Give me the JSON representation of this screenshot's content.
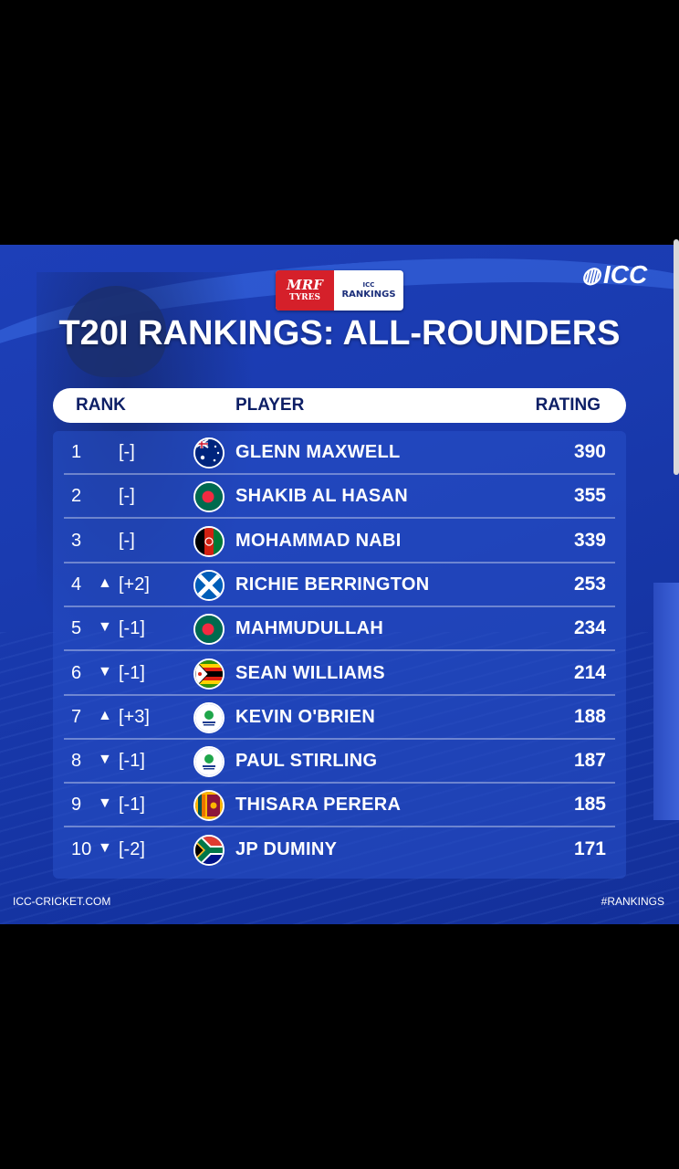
{
  "sponsor": {
    "mrf_line1": "MRF",
    "mrf_line2": "TYRES",
    "icc_small": "ICC",
    "rankings_label": "RANKINGS"
  },
  "brand": {
    "icc": "ICC"
  },
  "title": "T20I RANKINGS: ALL-ROUNDERS",
  "columns": {
    "rank": "RANK",
    "player": "PLAYER",
    "rating": "RATING"
  },
  "rows": [
    {
      "rank": "1",
      "arrow": "",
      "move": "[-]",
      "player": "GLENN MAXWELL",
      "rating": "390",
      "flag": "australia-flag"
    },
    {
      "rank": "2",
      "arrow": "",
      "move": "[-]",
      "player": "SHAKIB AL HASAN",
      "rating": "355",
      "flag": "bangladesh-flag"
    },
    {
      "rank": "3",
      "arrow": "",
      "move": "[-]",
      "player": "MOHAMMAD NABI",
      "rating": "339",
      "flag": "afghanistan-flag"
    },
    {
      "rank": "4",
      "arrow": "▲",
      "move": "[+2]",
      "player": "RICHIE BERRINGTON",
      "rating": "253",
      "flag": "scotland-flag"
    },
    {
      "rank": "5",
      "arrow": "▼",
      "move": "[-1]",
      "player": "MAHMUDULLAH",
      "rating": "234",
      "flag": "bangladesh-flag"
    },
    {
      "rank": "6",
      "arrow": "▼",
      "move": "[-1]",
      "player": "SEAN WILLIAMS",
      "rating": "214",
      "flag": "zimbabwe-flag"
    },
    {
      "rank": "7",
      "arrow": "▲",
      "move": "[+3]",
      "player": "KEVIN O'BRIEN",
      "rating": "188",
      "flag": "cricket-ireland-logo"
    },
    {
      "rank": "8",
      "arrow": "▼",
      "move": "[-1]",
      "player": "PAUL STIRLING",
      "rating": "187",
      "flag": "cricket-ireland-logo"
    },
    {
      "rank": "9",
      "arrow": "▼",
      "move": "[-1]",
      "player": "THISARA PERERA",
      "rating": "185",
      "flag": "sri-lanka-flag"
    },
    {
      "rank": "10",
      "arrow": "▼",
      "move": "[-2]",
      "player": "JP DUMINY",
      "rating": "171",
      "flag": "south-africa-flag"
    }
  ],
  "footer": {
    "left": "ICC-CRICKET.COM",
    "right": "#RANKINGS"
  },
  "colors": {
    "background": "#1a3bb0",
    "header_text": "#0d1f66",
    "mrf_red": "#d5202a"
  }
}
